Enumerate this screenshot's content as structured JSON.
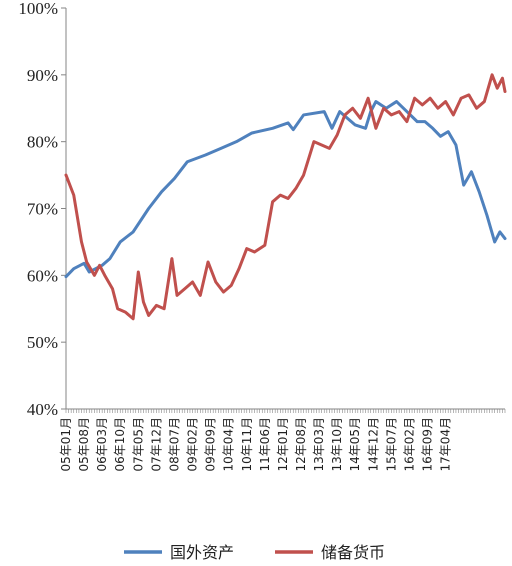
{
  "chart_data": {
    "type": "line",
    "title": "",
    "xlabel": "",
    "ylabel": "",
    "ylim": [
      40,
      100
    ],
    "yticks": [
      "40%",
      "50%",
      "60%",
      "70%",
      "80%",
      "90%",
      "100%"
    ],
    "grid": false,
    "legend_position": "bottom",
    "x_tick_labels": [
      "05年01月",
      "05年08月",
      "06年03月",
      "06年10月",
      "07年05月",
      "07年12月",
      "08年07月",
      "09年02月",
      "09年09月",
      "10年04月",
      "10年11月",
      "11年06月",
      "12年01月",
      "12年08月",
      "13年03月",
      "13年10月",
      "14年05月",
      "14年12月",
      "15年07月",
      "16年02月",
      "16年09月",
      "17年04月"
    ],
    "series": [
      {
        "name": "国外资产",
        "color": "#4f81bd",
        "values": [
          [
            0,
            59.8
          ],
          [
            3,
            61.0
          ],
          [
            7,
            61.8
          ],
          [
            9,
            60.5
          ],
          [
            14,
            61.5
          ],
          [
            17,
            62.5
          ],
          [
            21,
            65.0
          ],
          [
            26,
            66.5
          ],
          [
            32,
            70.0
          ],
          [
            37,
            72.5
          ],
          [
            42,
            74.5
          ],
          [
            47,
            77.0
          ],
          [
            54,
            78.0
          ],
          [
            60,
            79.0
          ],
          [
            66,
            80.0
          ],
          [
            72,
            81.3
          ],
          [
            80,
            82.0
          ],
          [
            86,
            82.8
          ],
          [
            88,
            81.8
          ],
          [
            92,
            84.0
          ],
          [
            100,
            84.5
          ],
          [
            103,
            82.0
          ],
          [
            106,
            84.5
          ],
          [
            112,
            82.5
          ],
          [
            116,
            82.0
          ],
          [
            118,
            84.5
          ],
          [
            120,
            86.0
          ],
          [
            124,
            85.0
          ],
          [
            128,
            86.0
          ],
          [
            132,
            84.5
          ],
          [
            136,
            83.0
          ],
          [
            139,
            83.0
          ],
          [
            142,
            82.0
          ],
          [
            145,
            80.8
          ],
          [
            148,
            81.5
          ],
          [
            151,
            79.5
          ],
          [
            154,
            73.5
          ],
          [
            157,
            75.5
          ],
          [
            160,
            72.5
          ],
          [
            163,
            69.0
          ],
          [
            166,
            65.0
          ],
          [
            168,
            66.5
          ],
          [
            170,
            65.5
          ]
        ]
      },
      {
        "name": "储备货币",
        "color": "#c0504d",
        "values": [
          [
            0,
            75.0
          ],
          [
            3,
            72.0
          ],
          [
            6,
            65.0
          ],
          [
            8,
            62.0
          ],
          [
            11,
            60.0
          ],
          [
            13,
            61.5
          ],
          [
            15,
            60.0
          ],
          [
            18,
            58.0
          ],
          [
            20,
            55.0
          ],
          [
            23,
            54.5
          ],
          [
            26,
            53.5
          ],
          [
            28,
            60.5
          ],
          [
            30,
            56.0
          ],
          [
            32,
            54.0
          ],
          [
            35,
            55.5
          ],
          [
            38,
            55.0
          ],
          [
            41,
            62.5
          ],
          [
            43,
            57.0
          ],
          [
            46,
            58.0
          ],
          [
            49,
            59.0
          ],
          [
            52,
            57.0
          ],
          [
            55,
            62.0
          ],
          [
            58,
            59.0
          ],
          [
            61,
            57.5
          ],
          [
            64,
            58.5
          ],
          [
            67,
            61.0
          ],
          [
            70,
            64.0
          ],
          [
            73,
            63.5
          ],
          [
            77,
            64.5
          ],
          [
            80,
            71.0
          ],
          [
            83,
            72.0
          ],
          [
            86,
            71.5
          ],
          [
            89,
            73.0
          ],
          [
            92,
            75.0
          ],
          [
            96,
            80.0
          ],
          [
            99,
            79.5
          ],
          [
            102,
            79.0
          ],
          [
            105,
            81.0
          ],
          [
            108,
            84.0
          ],
          [
            111,
            85.0
          ],
          [
            114,
            83.5
          ],
          [
            117,
            86.5
          ],
          [
            120,
            82.0
          ],
          [
            123,
            85.0
          ],
          [
            126,
            84.0
          ],
          [
            129,
            84.5
          ],
          [
            132,
            83.0
          ],
          [
            135,
            86.5
          ],
          [
            138,
            85.5
          ],
          [
            141,
            86.5
          ],
          [
            144,
            85.0
          ],
          [
            147,
            86.0
          ],
          [
            150,
            84.0
          ],
          [
            153,
            86.5
          ],
          [
            156,
            87.0
          ],
          [
            159,
            85.0
          ],
          [
            162,
            86.0
          ],
          [
            165,
            90.0
          ],
          [
            167,
            88.0
          ],
          [
            169,
            89.5
          ],
          [
            170,
            87.5
          ]
        ]
      }
    ]
  }
}
